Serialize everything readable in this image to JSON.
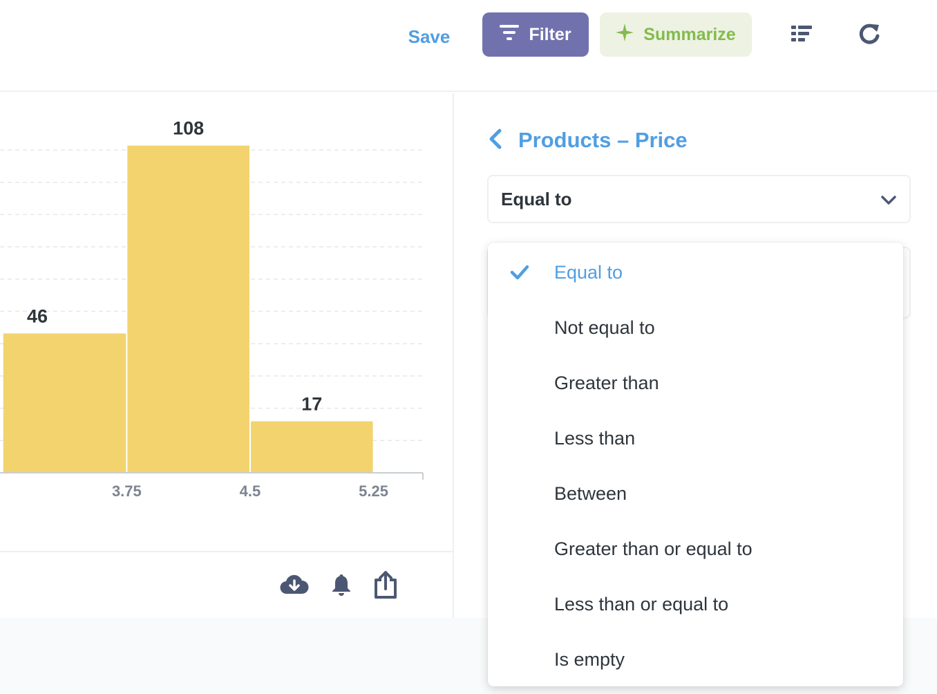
{
  "header": {
    "save_label": "Save",
    "filter_label": "Filter",
    "summarize_label": "Summarize"
  },
  "colors": {
    "accent": "#509ee3",
    "filter": "#7172ad",
    "summarize": "#84bb4c",
    "bar": "#f2d36e"
  },
  "chart_data": {
    "type": "bar",
    "bins": [
      {
        "x_start": 3.0,
        "x_end": 3.75,
        "value": 46
      },
      {
        "x_start": 3.75,
        "x_end": 4.5,
        "value": 108
      },
      {
        "x_start": 4.5,
        "x_end": 5.25,
        "value": 17
      }
    ],
    "x_ticks": [
      "3.75",
      "4.5",
      "5.25"
    ],
    "x_tick_values": [
      3.75,
      4.5,
      5.25
    ],
    "visible_x_range": [
      2.98,
      5.55
    ],
    "ylim": [
      0,
      115
    ],
    "grid": true,
    "data_labels": true
  },
  "filter_panel": {
    "back_title": "Products – Price",
    "operator_selected": "Equal to",
    "operators": [
      {
        "label": "Equal to",
        "selected": true
      },
      {
        "label": "Not equal to",
        "selected": false
      },
      {
        "label": "Greater than",
        "selected": false
      },
      {
        "label": "Less than",
        "selected": false
      },
      {
        "label": "Between",
        "selected": false
      },
      {
        "label": "Greater than or equal to",
        "selected": false
      },
      {
        "label": "Less than or equal to",
        "selected": false
      },
      {
        "label": "Is empty",
        "selected": false
      }
    ]
  },
  "icons": {
    "filter": "filter-icon",
    "summarize": "sparkle-icon",
    "list": "list-icon",
    "refresh": "refresh-icon",
    "download": "download-icon",
    "bell": "bell-icon",
    "share": "share-icon",
    "back": "chevron-left-icon",
    "select": "chevron-down-icon",
    "check": "check-icon"
  }
}
